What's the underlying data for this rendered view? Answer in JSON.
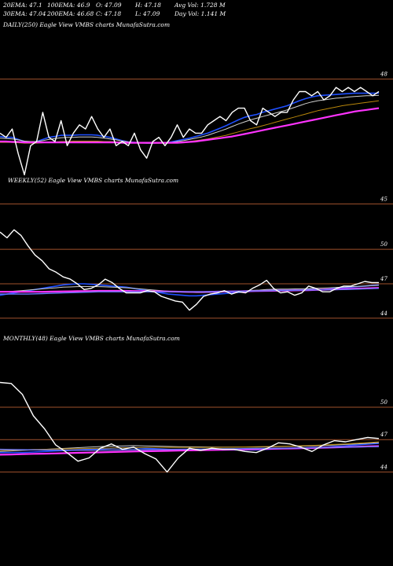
{
  "header": {
    "row1": [
      "20EMA: 47.1",
      "100EMA: 46.9",
      "O: 47.09",
      "H: 47.18",
      "Avg Vol: 1.728  M"
    ],
    "row2": [
      "30EMA: 47.04",
      "200EMA: 46.68",
      "C: 47.18",
      "L: 47.09",
      "Day Vol: 1.141  M"
    ]
  },
  "colors": {
    "price": "#ffffff",
    "ema_short": "#1f4fff",
    "ema_mid": "#cfcfcf",
    "ema_long": "#b8860b",
    "ema_200": "#ff33ff",
    "ema_200b": "#6a78ff",
    "level": "#a0522d"
  },
  "chart_data": [
    {
      "type": "line",
      "title": "DAILY(250) Eagle   View  VMBS charts MunafaSutra.com",
      "levels": [
        {
          "value": 48,
          "label": "48"
        },
        {
          "value": 45,
          "label": "45"
        }
      ],
      "ylim": [
        44.8,
        48.2
      ],
      "series": [
        {
          "key": "price",
          "values": [
            46.7,
            46.6,
            46.8,
            46.2,
            45.7,
            46.4,
            46.5,
            47.2,
            46.6,
            46.5,
            47.0,
            46.4,
            46.7,
            46.9,
            46.8,
            47.1,
            46.8,
            46.6,
            46.8,
            46.4,
            46.5,
            46.4,
            46.7,
            46.3,
            46.1,
            46.5,
            46.6,
            46.4,
            46.6,
            46.9,
            46.6,
            46.8,
            46.7,
            46.7,
            46.9,
            47.0,
            47.1,
            47.0,
            47.2,
            47.3,
            47.3,
            47.0,
            46.9,
            47.3,
            47.2,
            47.1,
            47.2,
            47.2,
            47.5,
            47.7,
            47.7,
            47.6,
            47.7,
            47.5,
            47.6,
            47.8,
            47.7,
            47.8,
            47.7,
            47.8,
            47.7,
            47.6,
            47.7
          ]
        },
        {
          "key": "ema_short",
          "values": [
            46.62,
            46.6,
            46.6,
            46.55,
            46.5,
            46.48,
            46.5,
            46.55,
            46.6,
            46.62,
            46.65,
            46.65,
            46.65,
            46.66,
            46.66,
            46.66,
            46.65,
            46.62,
            46.6,
            46.56,
            46.52,
            46.49,
            46.48,
            46.47,
            46.46,
            46.46,
            46.47,
            46.47,
            46.49,
            46.52,
            46.55,
            46.58,
            46.62,
            46.66,
            46.7,
            46.76,
            46.82,
            46.88,
            46.95,
            47.02,
            47.08,
            47.12,
            47.15,
            47.2,
            47.24,
            47.28,
            47.32,
            47.36,
            47.42,
            47.48,
            47.53,
            47.57,
            47.6,
            47.61,
            47.62,
            47.63,
            47.64,
            47.65,
            47.66,
            47.66,
            47.66,
            47.66,
            47.66
          ]
        },
        {
          "key": "ema_mid",
          "values": [
            46.58,
            46.57,
            46.56,
            46.54,
            46.51,
            46.5,
            46.5,
            46.52,
            46.55,
            46.57,
            46.59,
            46.6,
            46.6,
            46.61,
            46.61,
            46.61,
            46.6,
            46.58,
            46.56,
            46.54,
            46.51,
            46.49,
            46.48,
            46.47,
            46.46,
            46.46,
            46.46,
            46.47,
            46.48,
            46.5,
            46.52,
            46.55,
            46.58,
            46.61,
            46.65,
            46.7,
            46.75,
            46.8,
            46.86,
            46.92,
            46.97,
            47.02,
            47.06,
            47.1,
            47.14,
            47.18,
            47.22,
            47.26,
            47.31,
            47.36,
            47.41,
            47.45,
            47.48,
            47.5,
            47.52,
            47.54,
            47.55,
            47.57,
            47.58,
            47.59,
            47.6,
            47.6,
            47.61
          ]
        },
        {
          "key": "ema_long",
          "values": [
            46.48,
            46.48,
            46.48,
            46.47,
            46.46,
            46.46,
            46.46,
            46.47,
            46.48,
            46.49,
            46.5,
            46.5,
            46.51,
            46.51,
            46.51,
            46.51,
            46.51,
            46.5,
            46.5,
            46.49,
            46.48,
            46.47,
            46.47,
            46.46,
            46.46,
            46.46,
            46.46,
            46.46,
            46.47,
            46.48,
            46.49,
            46.5,
            46.52,
            46.54,
            46.56,
            46.59,
            46.62,
            46.65,
            46.69,
            46.73,
            46.77,
            46.81,
            46.84,
            46.88,
            46.92,
            46.96,
            47.0,
            47.04,
            47.08,
            47.12,
            47.16,
            47.2,
            47.24,
            47.27,
            47.3,
            47.33,
            47.36,
            47.38,
            47.4,
            47.42,
            47.44,
            47.46,
            47.48
          ]
        },
        {
          "key": "ema_200",
          "values": [
            46.5,
            46.5,
            46.49,
            46.49,
            46.48,
            46.48,
            46.48,
            46.48,
            46.48,
            46.48,
            46.48,
            46.48,
            46.48,
            46.48,
            46.48,
            46.48,
            46.48,
            46.48,
            46.48,
            46.48,
            46.47,
            46.47,
            46.47,
            46.47,
            46.47,
            46.47,
            46.47,
            46.47,
            46.47,
            46.47,
            46.48,
            46.49,
            46.5,
            46.52,
            46.54,
            46.56,
            46.58,
            46.6,
            46.62,
            46.65,
            46.68,
            46.71,
            46.74,
            46.77,
            46.8,
            46.83,
            46.86,
            46.89,
            46.92,
            46.95,
            46.98,
            47.01,
            47.04,
            47.07,
            47.1,
            47.13,
            47.16,
            47.19,
            47.22,
            47.24,
            47.26,
            47.28,
            47.3
          ]
        }
      ]
    },
    {
      "type": "line",
      "title": "WEEKLY(52) Eagle   View  VMBS charts MunafaSutra.com",
      "levels": [
        {
          "value": 50,
          "label": "50"
        },
        {
          "value": 47,
          "label": "47"
        },
        {
          "value": 44,
          "label": "44"
        }
      ],
      "ylim": [
        43.3,
        52.2
      ],
      "series": [
        {
          "key": "price",
          "values": [
            51.5,
            51.0,
            51.7,
            51.2,
            50.3,
            49.5,
            49.0,
            48.3,
            48.0,
            47.6,
            47.4,
            47.0,
            46.5,
            46.6,
            46.9,
            47.4,
            47.1,
            46.6,
            46.2,
            46.2,
            46.2,
            46.4,
            46.3,
            45.9,
            45.7,
            45.5,
            45.4,
            44.7,
            45.2,
            45.9,
            46.1,
            46.2,
            46.4,
            46.1,
            46.3,
            46.2,
            46.6,
            46.9,
            47.3,
            46.6,
            46.2,
            46.3,
            46.0,
            46.2,
            46.8,
            46.6,
            46.3,
            46.3,
            46.6,
            46.8,
            46.8,
            47.0,
            47.2,
            47.1,
            47.1
          ]
        },
        {
          "key": "ema_short",
          "values": [
            46.0,
            46.1,
            46.2,
            46.3,
            46.4,
            46.5,
            46.6,
            46.7,
            46.8,
            46.9,
            46.95,
            47.0,
            47.0,
            46.95,
            46.9,
            46.85,
            46.8,
            46.75,
            46.7,
            46.6,
            46.5,
            46.4,
            46.3,
            46.2,
            46.1,
            46.05,
            46.0,
            45.95,
            45.95,
            46.0,
            46.05,
            46.1,
            46.15,
            46.2,
            46.25,
            46.3,
            46.35,
            46.4,
            46.45,
            46.45,
            46.45,
            46.45,
            46.45,
            46.45,
            46.5,
            46.5,
            46.5,
            46.55,
            46.6,
            46.65,
            46.7,
            46.75,
            46.8,
            46.85,
            46.9
          ]
        },
        {
          "key": "ema_mid",
          "values": [
            46.3,
            46.3,
            46.35,
            46.4,
            46.45,
            46.5,
            46.55,
            46.6,
            46.65,
            46.7,
            46.72,
            46.75,
            46.76,
            46.76,
            46.75,
            46.73,
            46.7,
            46.68,
            46.65,
            46.6,
            46.55,
            46.5,
            46.45,
            46.4,
            46.35,
            46.3,
            46.27,
            46.25,
            46.24,
            46.24,
            46.25,
            46.27,
            46.3,
            46.32,
            46.35,
            46.38,
            46.42,
            46.45,
            46.5,
            46.52,
            46.53,
            46.54,
            46.55,
            46.56,
            46.58,
            46.6,
            46.62,
            46.65,
            46.68,
            46.71,
            46.74,
            46.77,
            46.8,
            46.83,
            46.86
          ]
        },
        {
          "key": "ema_200",
          "values": [
            46.3,
            46.3,
            46.3,
            46.3,
            46.3,
            46.3,
            46.3,
            46.31,
            46.32,
            46.33,
            46.34,
            46.35,
            46.36,
            46.37,
            46.38,
            46.38,
            46.38,
            46.38,
            46.38,
            46.37,
            46.36,
            46.35,
            46.34,
            46.33,
            46.32,
            46.31,
            46.3,
            46.29,
            46.29,
            46.29,
            46.3,
            46.31,
            46.32,
            46.33,
            46.34,
            46.35,
            46.36,
            46.37,
            46.38,
            46.39,
            46.4,
            46.41,
            46.42,
            46.43,
            46.44,
            46.46,
            46.48,
            46.5,
            46.52,
            46.54,
            46.56,
            46.58,
            46.6,
            46.62,
            46.64
          ]
        },
        {
          "key": "ema_200b",
          "values": [
            46.1,
            46.1,
            46.1,
            46.1,
            46.1,
            46.12,
            46.14,
            46.16,
            46.18,
            46.2,
            46.22,
            46.24,
            46.26,
            46.28,
            46.3,
            46.3,
            46.3,
            46.3,
            46.3,
            46.3,
            46.3,
            46.3,
            46.3,
            46.3,
            46.3,
            46.3,
            46.3,
            46.3,
            46.3,
            46.3,
            46.31,
            46.32,
            46.33,
            46.34,
            46.35,
            46.36,
            46.37,
            46.38,
            46.39,
            46.4,
            46.41,
            46.42,
            46.43,
            46.44,
            46.45,
            46.46,
            46.47,
            46.48,
            46.49,
            46.5,
            46.52,
            46.54,
            46.56,
            46.58,
            46.6
          ]
        }
      ]
    },
    {
      "type": "line",
      "title": "MONTHLY(48) Eagle   View  VMBS charts MunafaSutra.com",
      "levels": [
        {
          "value": 50,
          "label": "50"
        },
        {
          "value": 47,
          "label": "47"
        },
        {
          "value": 44,
          "label": "44"
        }
      ],
      "ylim": [
        43.3,
        53.5
      ],
      "series": [
        {
          "key": "price",
          "values": [
            52.3,
            52.2,
            51.2,
            49.2,
            48.0,
            46.5,
            45.8,
            45.0,
            45.3,
            46.2,
            46.6,
            46.1,
            46.3,
            45.7,
            45.2,
            44.0,
            45.3,
            46.2,
            46.0,
            46.2,
            46.1,
            46.1,
            45.9,
            45.8,
            46.2,
            46.7,
            46.6,
            46.3,
            45.9,
            46.5,
            46.9,
            46.8,
            47.0,
            47.2,
            47.1
          ]
        },
        {
          "key": "ema_short",
          "values": [
            45.8,
            45.8,
            45.8,
            45.85,
            45.9,
            45.95,
            46.0,
            46.05,
            46.1,
            46.15,
            46.2,
            46.25,
            46.25,
            46.2,
            46.15,
            46.1,
            46.05,
            46.05,
            46.05,
            46.05,
            46.05,
            46.05,
            46.05,
            46.05,
            46.1,
            46.15,
            46.2,
            46.22,
            46.24,
            46.28,
            46.35,
            46.42,
            46.5,
            46.58,
            46.65
          ]
        },
        {
          "key": "ema_mid",
          "values": [
            45.9,
            45.95,
            46.0,
            46.05,
            46.1,
            46.15,
            46.2,
            46.25,
            46.3,
            46.35,
            46.4,
            46.42,
            46.44,
            46.42,
            46.4,
            46.37,
            46.34,
            46.33,
            46.32,
            46.31,
            46.3,
            46.3,
            46.3,
            46.3,
            46.32,
            46.35,
            46.38,
            46.4,
            46.42,
            46.45,
            46.5,
            46.55,
            46.6,
            46.66,
            46.72
          ]
        },
        {
          "key": "ema_long",
          "values": [
            46.0,
            46.02,
            46.05,
            46.08,
            46.1,
            46.12,
            46.14,
            46.16,
            46.18,
            46.2,
            46.22,
            46.24,
            46.26,
            46.27,
            46.28,
            46.28,
            46.28,
            46.28,
            46.28,
            46.28,
            46.29,
            46.3,
            46.32,
            46.34,
            46.36,
            46.38,
            46.4,
            46.43,
            46.46,
            46.5,
            46.55,
            46.6,
            46.66,
            46.72,
            46.8
          ]
        },
        {
          "key": "ema_200",
          "values": [
            45.6,
            45.62,
            45.65,
            45.68,
            45.7,
            45.72,
            45.75,
            45.78,
            45.8,
            45.82,
            45.85,
            45.88,
            45.9,
            45.92,
            45.94,
            45.96,
            45.98,
            46.0,
            46.02,
            46.04,
            46.06,
            46.08,
            46.1,
            46.12,
            46.14,
            46.16,
            46.18,
            46.2,
            46.22,
            46.25,
            46.28,
            46.31,
            46.34,
            46.37,
            46.4
          ]
        },
        {
          "key": "ema_200b",
          "values": [
            46.1,
            46.08,
            46.06,
            46.05,
            46.04,
            46.03,
            46.02,
            46.02,
            46.02,
            46.03,
            46.04,
            46.05,
            46.06,
            46.07,
            46.08,
            46.09,
            46.1,
            46.11,
            46.12,
            46.13,
            46.14,
            46.15,
            46.16,
            46.17,
            46.18,
            46.19,
            46.2,
            46.22,
            46.24,
            46.26,
            46.28,
            46.3,
            46.32,
            46.34,
            46.36
          ]
        }
      ]
    }
  ]
}
